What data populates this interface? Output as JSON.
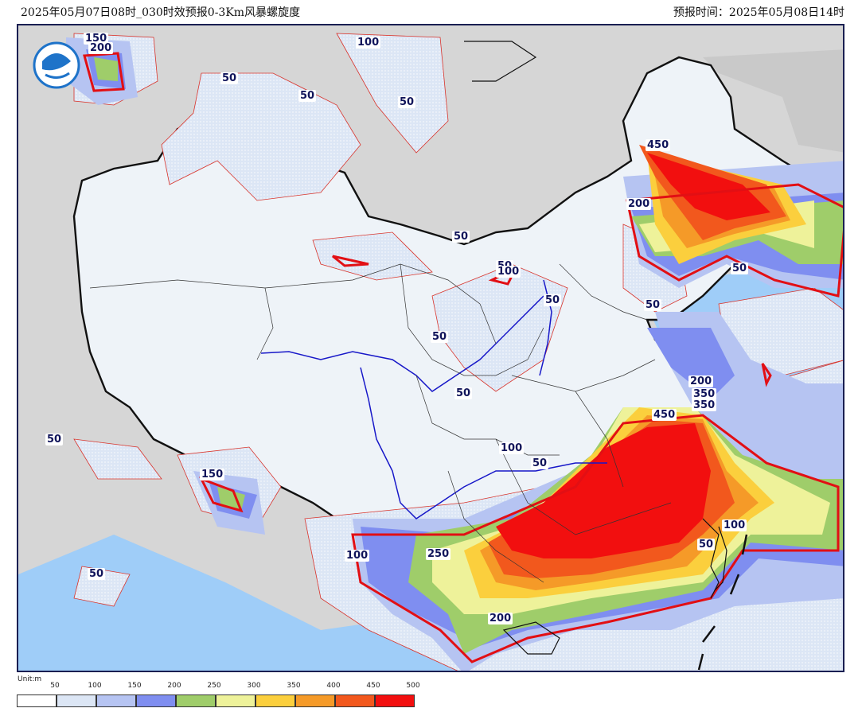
{
  "header": {
    "title": "2025年05月07日08时_030时效预报0-3Km风暴螺旋度",
    "issue_time": "预报时间：2025年05月08日14时"
  },
  "legend": {
    "unit": "Unit:m",
    "ticks": [
      "50",
      "100",
      "150",
      "200",
      "250",
      "300",
      "350",
      "400",
      "450",
      "500"
    ],
    "colors": [
      "#ffffff",
      "#dce6f5",
      "#b6c4f2",
      "#7f8ef0",
      "#9fcd6a",
      "#eef29a",
      "#fbcf3d",
      "#f59a28",
      "#f2581d",
      "#f20f0f"
    ]
  },
  "map": {
    "ocean_color": "#9fcdf8",
    "land_color": "#d6d6d6",
    "china_fill": "#eef3f8",
    "contour_color": "#d9342b",
    "emphasis_contour_color": "#e20f14",
    "river_color": "#1717c8",
    "border_color": "#111111"
  },
  "contour_labels": [
    {
      "text": "150"
    },
    {
      "text": "200"
    },
    {
      "text": "100"
    },
    {
      "text": "50"
    },
    {
      "text": "50"
    },
    {
      "text": "50"
    },
    {
      "text": "450"
    },
    {
      "text": "200"
    },
    {
      "text": "50"
    },
    {
      "text": "50"
    },
    {
      "text": "100"
    },
    {
      "text": "50"
    },
    {
      "text": "50"
    },
    {
      "text": "50"
    },
    {
      "text": "50"
    },
    {
      "text": "200"
    },
    {
      "text": "350"
    },
    {
      "text": "350"
    },
    {
      "text": "450"
    },
    {
      "text": "50"
    },
    {
      "text": "50"
    },
    {
      "text": "150"
    },
    {
      "text": "100"
    },
    {
      "text": "50"
    },
    {
      "text": "100"
    },
    {
      "text": "250"
    },
    {
      "text": "100"
    },
    {
      "text": "50"
    },
    {
      "text": "200"
    },
    {
      "text": "50"
    }
  ]
}
